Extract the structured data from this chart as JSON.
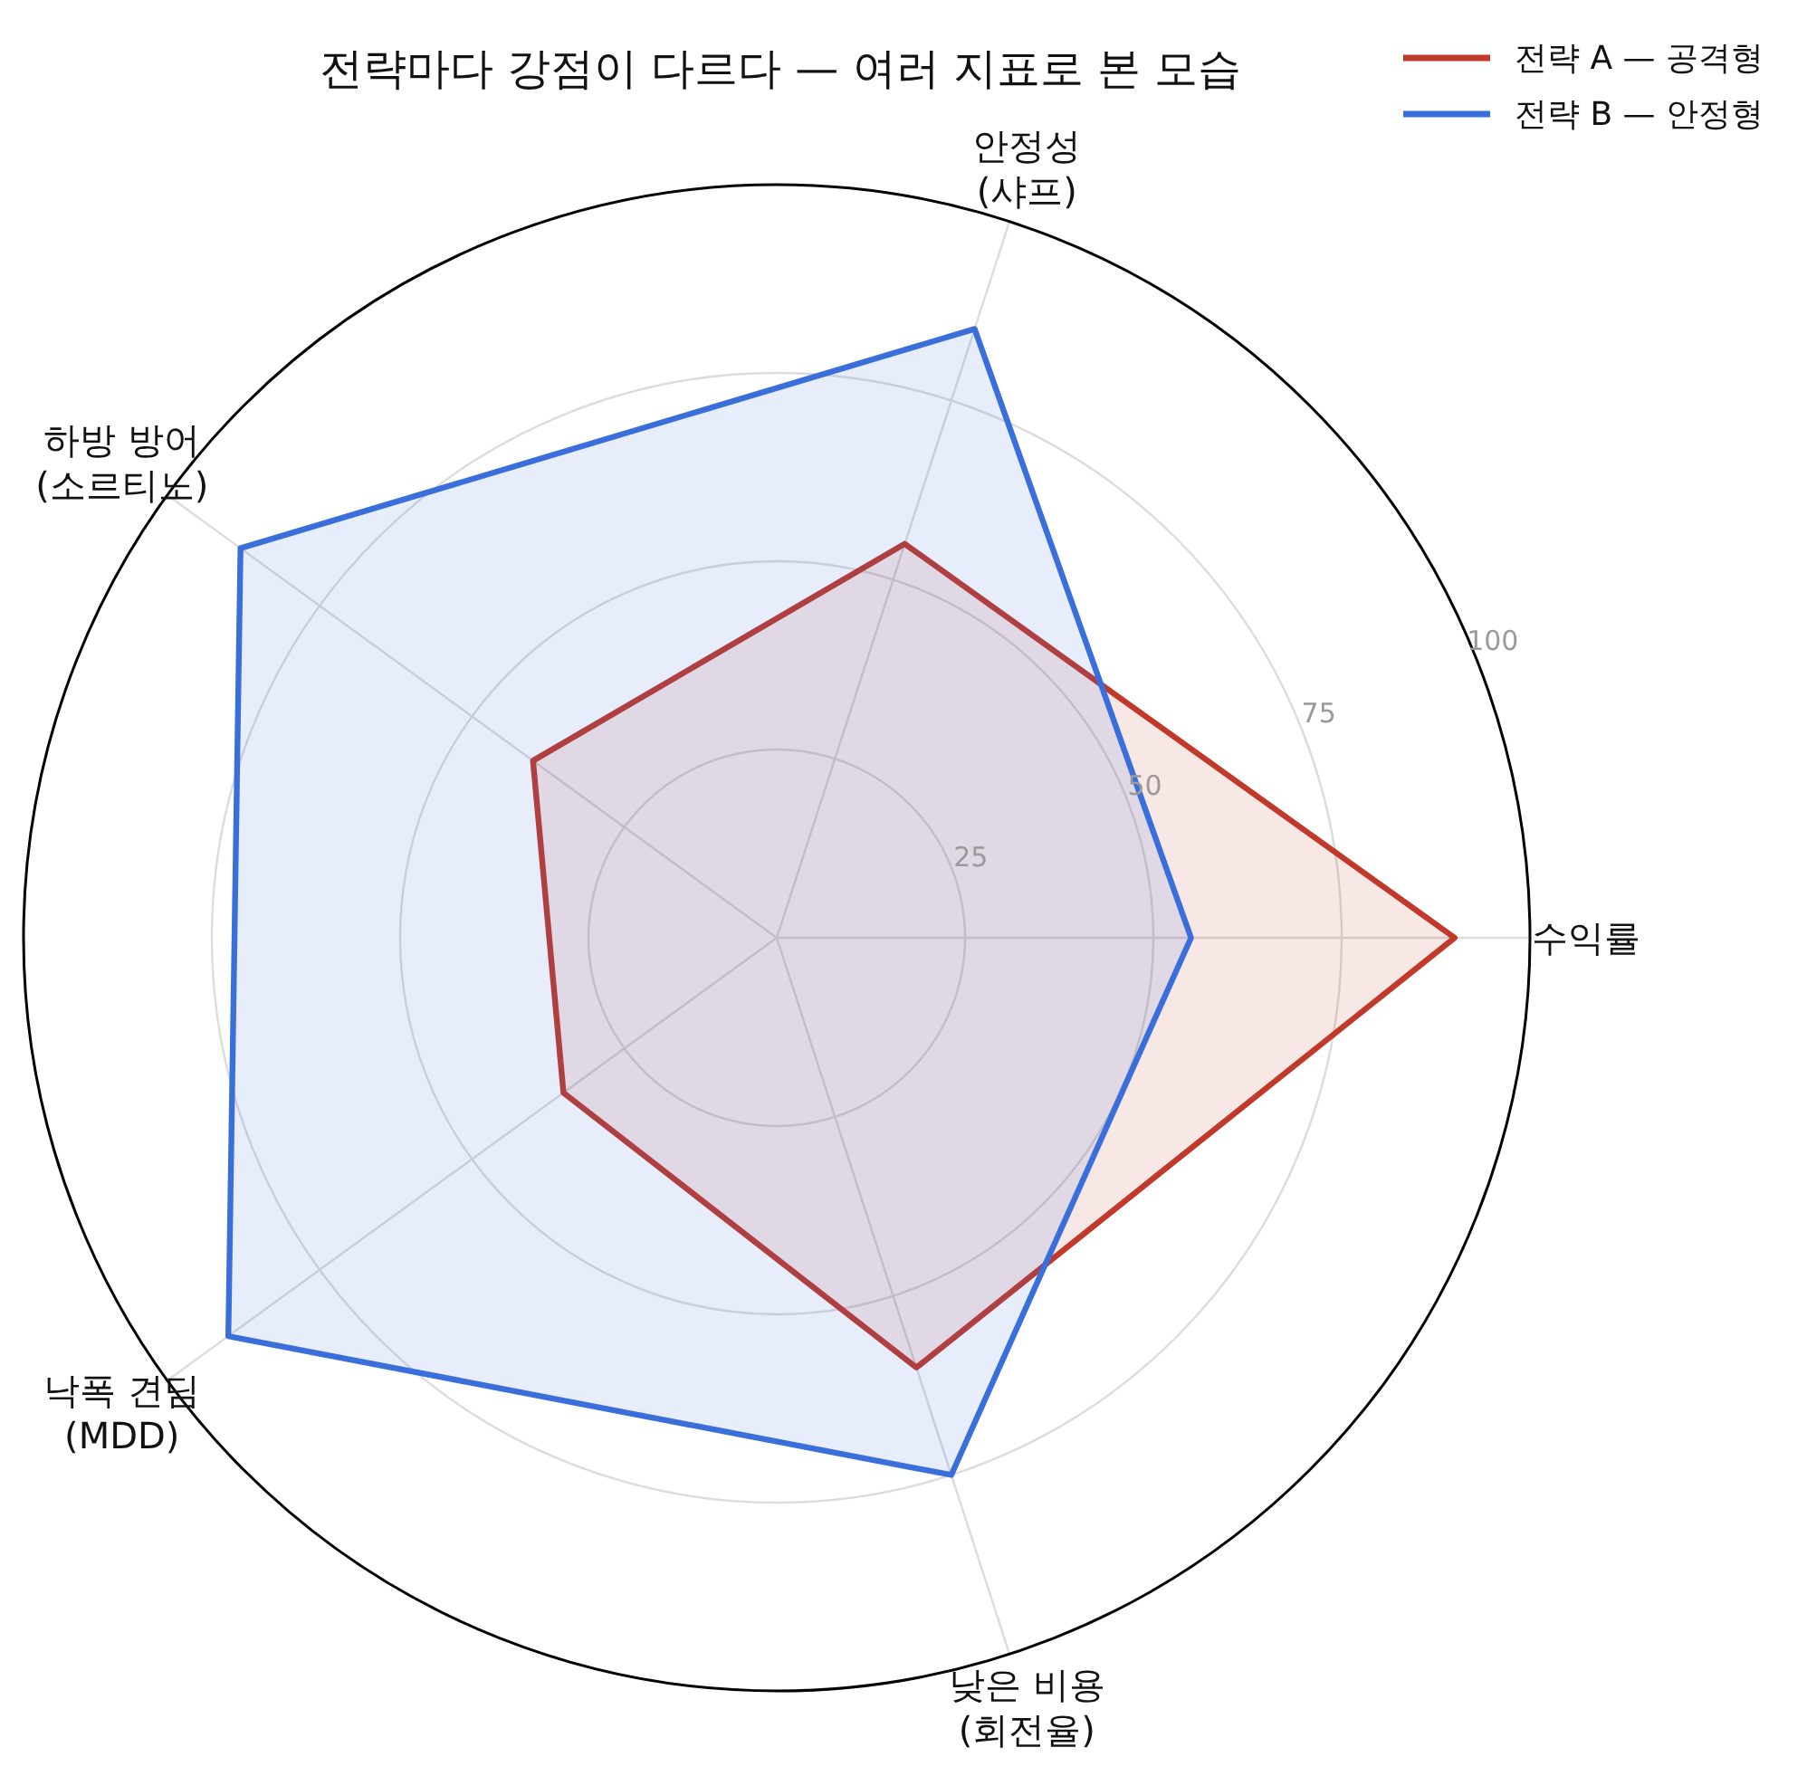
{
  "chart_data": {
    "type": "radar",
    "title": "전략마다 강점이 다르다 — 여러 지표로 본 모습",
    "categories": [
      "안정성\n(샤프)",
      "수익률",
      "낮은 비용\n(회전율)",
      "낙폭 견딤\n(MDD)",
      "하방 방어\n(소르티노)"
    ],
    "series": [
      {
        "name": "전략 A — 공격형",
        "color": "#c0392b",
        "values": [
          55,
          90,
          60,
          35,
          40
        ]
      },
      {
        "name": "전략 B — 안정형",
        "color": "#3a6fdb",
        "values": [
          85,
          55,
          75,
          90,
          88
        ]
      }
    ],
    "ylim": [
      0,
      100
    ],
    "yticks": [
      25,
      50,
      75,
      100
    ],
    "grid": true,
    "legend": "top right"
  }
}
